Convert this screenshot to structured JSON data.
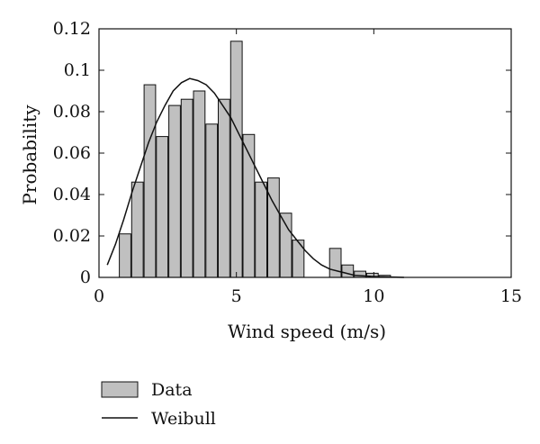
{
  "chart_data": {
    "type": "bar",
    "xlabel": "Wind speed (m/s)",
    "ylabel": "Probability",
    "xlim": [
      0,
      15
    ],
    "ylim": [
      0,
      0.12
    ],
    "xticks": [
      0,
      5,
      10,
      15
    ],
    "yticks": [
      0,
      0.02,
      0.04,
      0.06,
      0.08,
      0.1,
      0.12
    ],
    "ytick_labels": [
      "0",
      "0.02",
      "0.04",
      "0.06",
      "0.08",
      "0.1",
      "0.12"
    ],
    "grid": false,
    "legend_position": "bottom-left",
    "bar_width": 0.42,
    "bars": {
      "name": "Data",
      "x": [
        0.95,
        1.4,
        1.85,
        2.3,
        2.75,
        3.2,
        3.65,
        4.1,
        4.55,
        5.0,
        5.45,
        5.9,
        6.35,
        6.8,
        7.25,
        7.7,
        8.6,
        9.05,
        9.5,
        9.95,
        10.4
      ],
      "values": [
        0.021,
        0.046,
        0.093,
        0.068,
        0.083,
        0.086,
        0.09,
        0.074,
        0.086,
        0.114,
        0.069,
        0.046,
        0.048,
        0.031,
        0.018,
        0.0,
        0.014,
        0.006,
        0.003,
        0.002,
        0.001
      ]
    },
    "series": [
      {
        "name": "Weibull",
        "type": "line",
        "x": [
          0.3,
          0.6,
          0.9,
          1.2,
          1.5,
          1.8,
          2.1,
          2.4,
          2.7,
          3.0,
          3.3,
          3.6,
          3.9,
          4.2,
          4.5,
          4.8,
          5.1,
          5.4,
          5.7,
          6.0,
          6.3,
          6.6,
          6.9,
          7.2,
          7.5,
          7.8,
          8.1,
          8.4,
          8.7,
          9.0,
          9.3,
          9.6,
          9.9,
          10.2,
          10.5,
          10.8,
          11.1
        ],
        "y": [
          0.006,
          0.016,
          0.028,
          0.041,
          0.053,
          0.065,
          0.075,
          0.083,
          0.09,
          0.094,
          0.096,
          0.095,
          0.093,
          0.089,
          0.083,
          0.077,
          0.069,
          0.061,
          0.053,
          0.045,
          0.037,
          0.03,
          0.023,
          0.018,
          0.013,
          0.009,
          0.006,
          0.004,
          0.003,
          0.002,
          0.001,
          0.0008,
          0.0005,
          0.0003,
          0.0002,
          0.0001,
          0.0
        ]
      }
    ],
    "legend": [
      {
        "name": "Data",
        "marker": "bar"
      },
      {
        "name": "Weibull",
        "marker": "line"
      }
    ],
    "colors": {
      "bar_fill": "#c0c0c0",
      "bar_stroke": "#111111",
      "line": "#111111"
    }
  }
}
